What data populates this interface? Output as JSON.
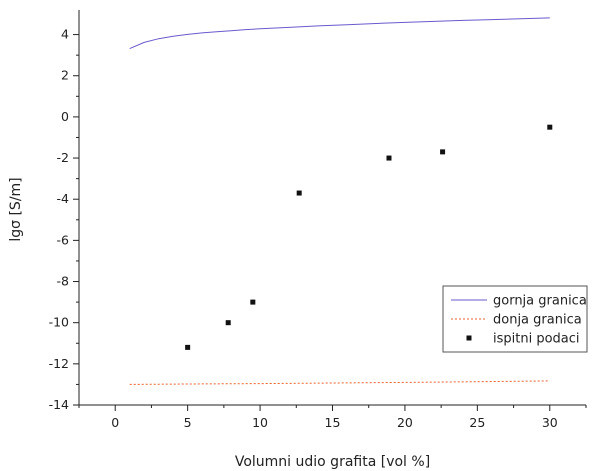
{
  "chart_data": {
    "type": "line",
    "xlabel": "Volumni udio grafita [vol %]",
    "ylabel": "lgσ [S/m]",
    "xlim": [
      -2.5,
      32.5
    ],
    "ylim": [
      -14,
      5
    ],
    "xticks": [
      0,
      5,
      10,
      15,
      20,
      25,
      30
    ],
    "yticks": [
      -14,
      -12,
      -10,
      -8,
      -6,
      -4,
      -2,
      0,
      2,
      4
    ],
    "grid": false,
    "legend_position": "bottom-right",
    "series": [
      {
        "name": "gornja granica",
        "kind": "line",
        "color": "#6a5acd",
        "x": [
          1,
          2,
          3,
          4,
          5,
          6,
          7,
          8,
          9,
          10,
          12,
          14,
          16,
          18,
          20,
          22,
          24,
          26,
          28,
          30
        ],
        "y": [
          3.32,
          3.62,
          3.8,
          3.92,
          4.01,
          4.08,
          4.14,
          4.19,
          4.24,
          4.28,
          4.35,
          4.42,
          4.48,
          4.54,
          4.59,
          4.64,
          4.69,
          4.73,
          4.77,
          4.81
        ]
      },
      {
        "name": "donja granica",
        "kind": "dashed",
        "color": "#e8622c",
        "x": [
          1,
          5,
          10,
          15,
          20,
          25,
          30
        ],
        "y": [
          -13.0,
          -12.98,
          -12.96,
          -12.93,
          -12.9,
          -12.87,
          -12.83
        ]
      },
      {
        "name": "ispitni podaci",
        "kind": "scatter",
        "color": "#111111",
        "x": [
          5.0,
          7.8,
          9.5,
          12.7,
          18.9,
          22.6,
          30.0
        ],
        "y": [
          -11.2,
          -10.0,
          -9.0,
          -3.7,
          -2.0,
          -1.7,
          -0.5
        ]
      }
    ]
  }
}
